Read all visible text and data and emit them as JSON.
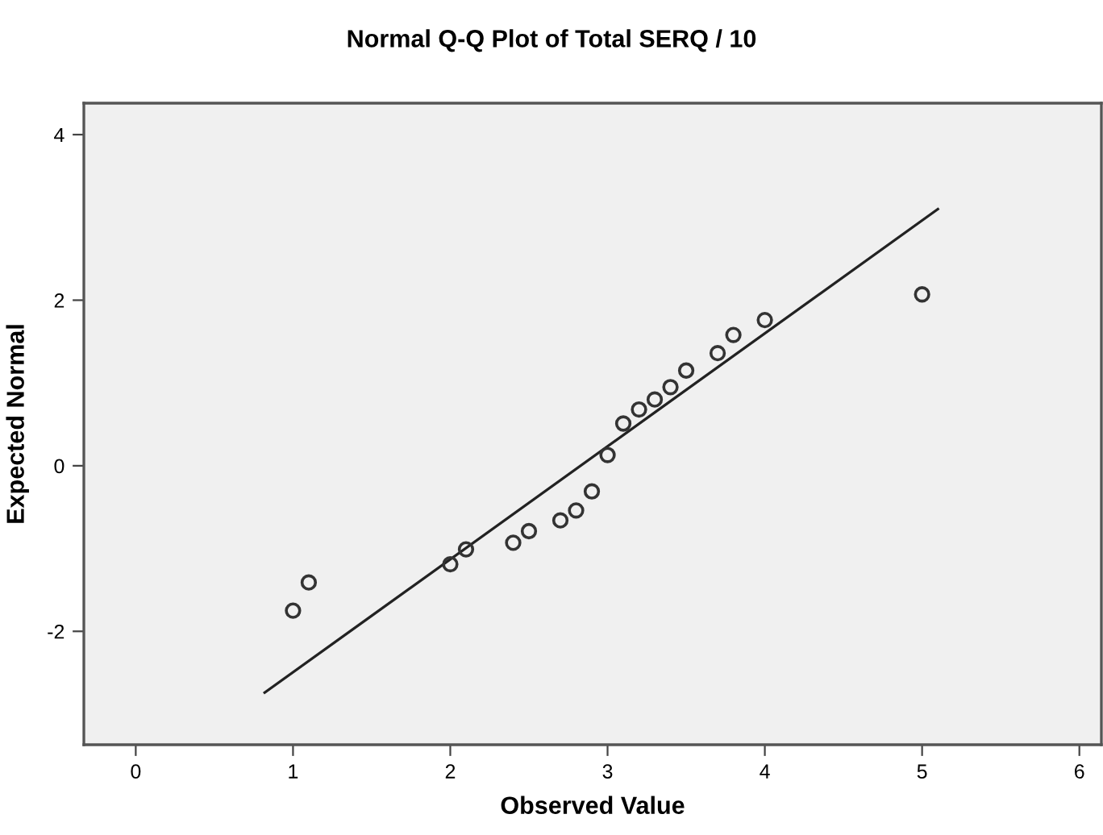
{
  "chart_data": {
    "type": "scatter",
    "title": "Normal Q-Q Plot of Total SERQ / 10",
    "xlabel": "Observed Value",
    "ylabel": "Expected Normal",
    "series": [
      {
        "color": "#333333",
        "x": [
          1.0,
          1.1,
          2.0,
          2.1,
          2.4,
          2.5,
          2.7,
          2.8,
          2.9,
          3.0,
          3.1,
          3.2,
          3.3,
          3.4,
          3.5,
          3.7,
          3.8,
          4.0,
          5.0
        ],
        "values": [
          -1.75,
          -1.41,
          -1.19,
          -1.01,
          -0.93,
          -0.79,
          -0.66,
          -0.54,
          -0.31,
          0.13,
          0.51,
          0.68,
          0.8,
          0.95,
          1.15,
          1.36,
          1.58,
          1.76,
          2.07
        ]
      },
      {
        "type": "line",
        "marker": "none",
        "color": "#222222",
        "x": [
          0.82,
          5.1
        ],
        "values": [
          -2.74,
          3.1
        ]
      }
    ],
    "xlim": [
      -0.33,
      6.14
    ],
    "ylim": [
      -3.37,
      4.38
    ],
    "xticks": [
      0,
      1,
      2,
      3,
      4,
      5,
      6
    ],
    "yticks": [
      -2,
      0,
      2,
      4
    ],
    "marker": "circle",
    "grid": false,
    "legend": false
  }
}
